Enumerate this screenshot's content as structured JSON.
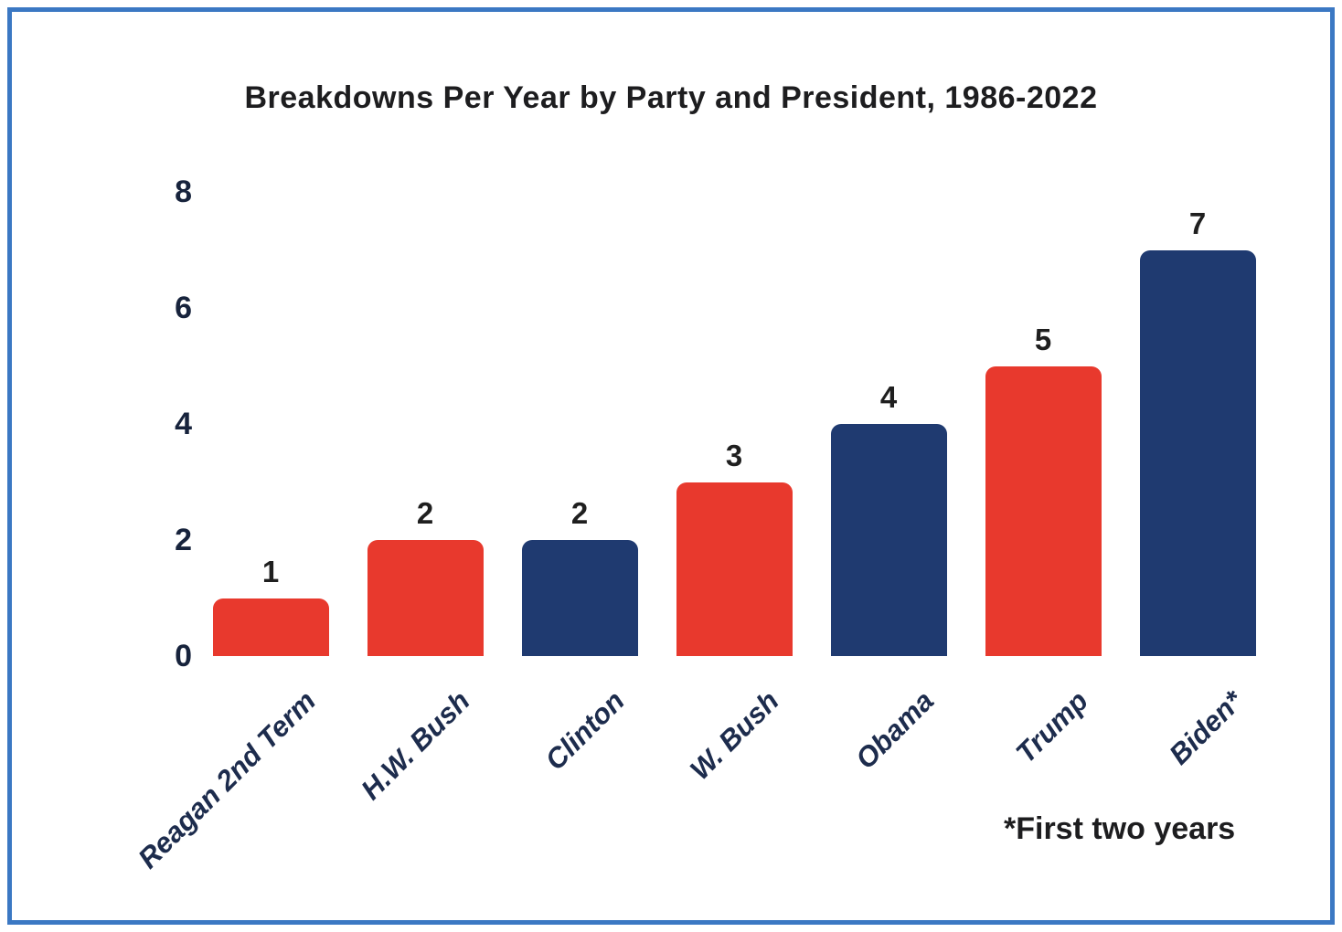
{
  "chart_data": {
    "type": "bar",
    "title": "Breakdowns Per Year by Party and President, 1986-2022",
    "categories": [
      "Reagan 2nd Term",
      "H.W. Bush",
      "Clinton",
      "W. Bush",
      "Obama",
      "Trump",
      "Biden*"
    ],
    "values": [
      1,
      2,
      2,
      3,
      4,
      5,
      7
    ],
    "value_labels": [
      "1",
      "2",
      "2",
      "3",
      "4",
      "5",
      "7"
    ],
    "parties": [
      "Republican",
      "Republican",
      "Democrat",
      "Republican",
      "Democrat",
      "Republican",
      "Democrat"
    ],
    "bar_colors": [
      "#e8392d",
      "#e8392d",
      "#1f3a70",
      "#e8392d",
      "#1f3a70",
      "#e8392d",
      "#1f3a70"
    ],
    "y_ticks": [
      0,
      2,
      4,
      6,
      8
    ],
    "ylim": [
      0,
      8
    ],
    "xlabel": "",
    "ylabel": "",
    "grid": false,
    "legend": "none",
    "footnote": "*First two years",
    "colors": {
      "republican_red": "#e8392d",
      "democrat_navy": "#1f3a70",
      "tick_text": "#17233c",
      "category_text": "#1d2c4d",
      "title_text": "#1d1d1f",
      "frame_border": "#3b78c3",
      "background": "#ffffff"
    }
  }
}
